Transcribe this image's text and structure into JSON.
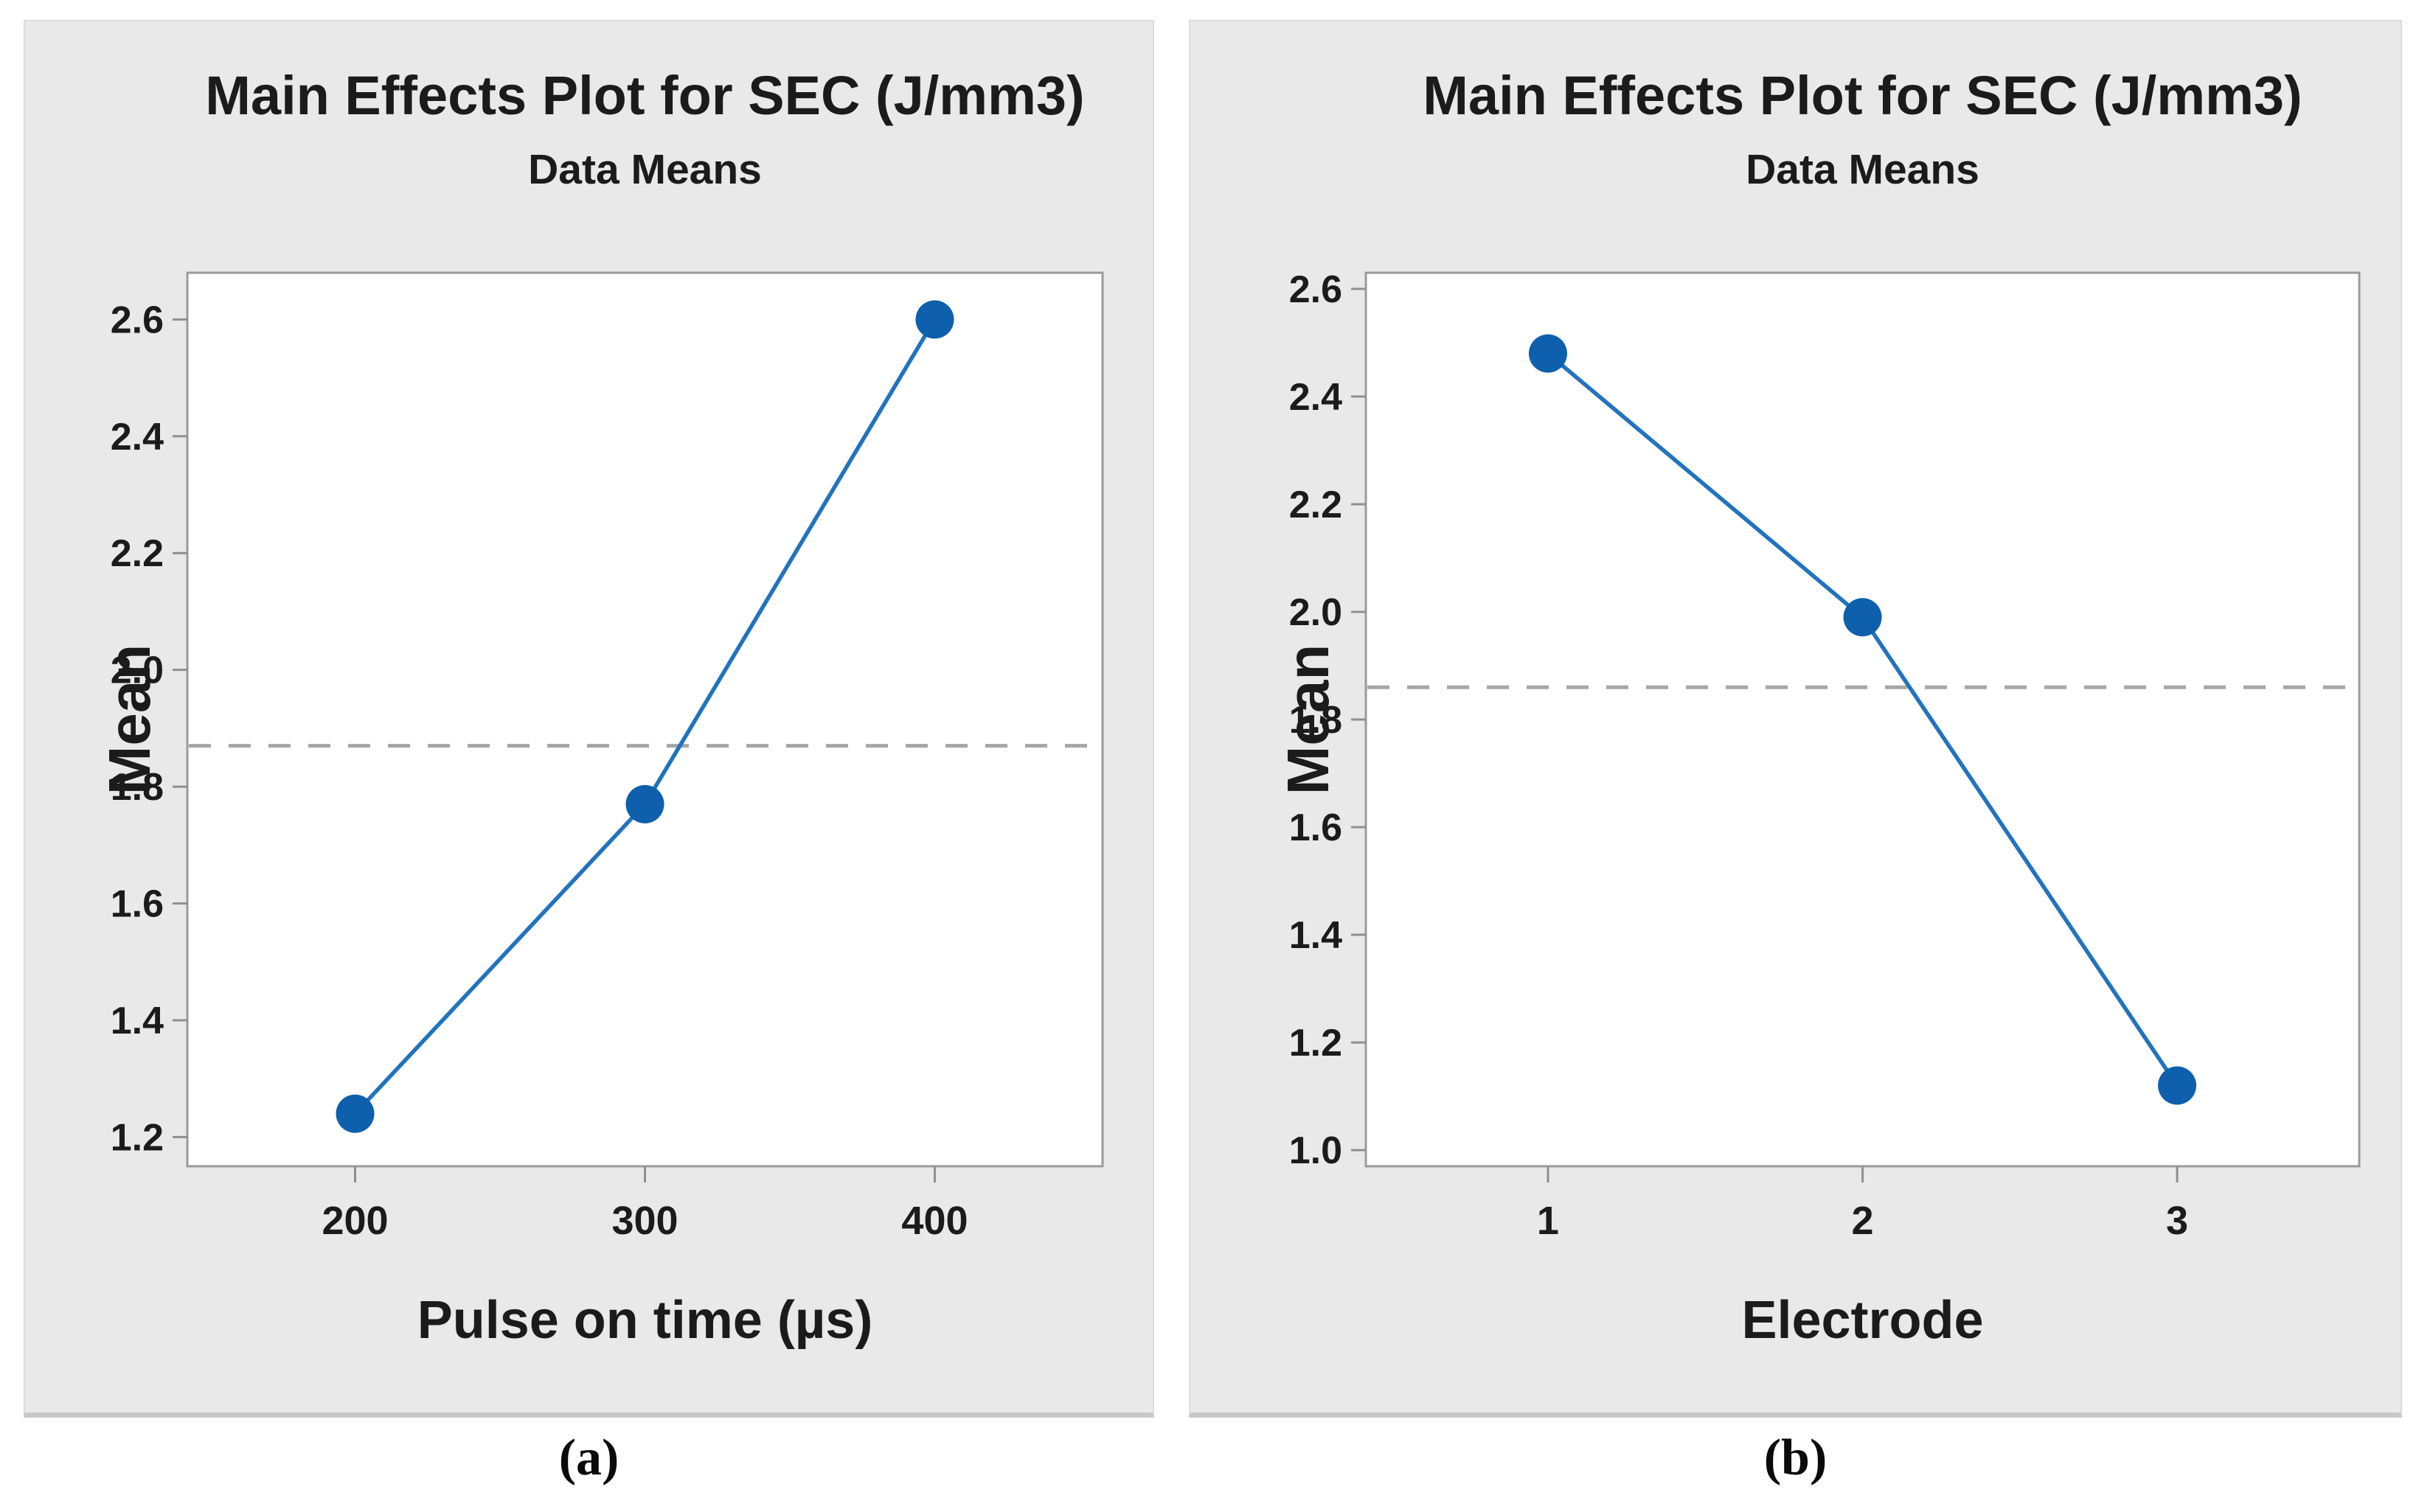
{
  "colors": {
    "page_bg": "#ffffff",
    "panel_bg": "#e9e9e9",
    "plot_bg": "#ffffff",
    "plot_border": "#9a9a9a",
    "tick": "#8f8f8f",
    "marker": "#0e5fac",
    "line": "#2273bd",
    "mean_dash": "#a6a6a6",
    "text": "#1b1b1b"
  },
  "figure": {
    "caption_a": "(a)",
    "caption_b": "(b)"
  },
  "chart_data": [
    {
      "id": "a",
      "type": "line",
      "title": "Main Effects Plot for SEC (J/mm3)",
      "subtitle": "Data Means",
      "xlabel": "Pulse on time (µs)",
      "ylabel": "Mean",
      "categories": [
        "200",
        "300",
        "400"
      ],
      "values": [
        1.24,
        1.77,
        2.6
      ],
      "overall_mean_line": 1.87,
      "ytick_labels": [
        "2.6",
        "2.4",
        "2.2",
        "2.0",
        "1.8",
        "1.6",
        "1.4",
        "1.2"
      ],
      "ylim": [
        1.15,
        2.68
      ],
      "grid": "off",
      "legend": "none",
      "marker": "filled-circle",
      "caption": "(a)"
    },
    {
      "id": "b",
      "type": "line",
      "title": "Main Effects Plot for SEC (J/mm3)",
      "subtitle": "Data Means",
      "xlabel": "Electrode",
      "ylabel": "Mean",
      "categories": [
        "1",
        "2",
        "3"
      ],
      "values": [
        2.48,
        1.99,
        1.12
      ],
      "overall_mean_line": 1.86,
      "ytick_labels": [
        "2.6",
        "2.4",
        "2.2",
        "2.0",
        "1.8",
        "1.6",
        "1.4",
        "1.2",
        "1.0"
      ],
      "ylim": [
        0.97,
        2.63
      ],
      "grid": "off",
      "legend": "none",
      "marker": "filled-circle",
      "caption": "(b)"
    }
  ]
}
